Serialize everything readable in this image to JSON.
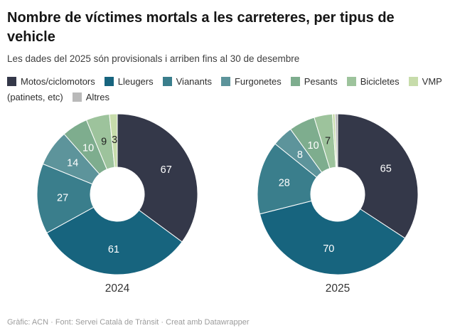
{
  "header": {
    "title": "Nombre de víctimes mortals a les carreteres, per tipus de vehicle",
    "subtitle": "Les dades del 2025 són provisionals i arriben fins al 30 de desembre"
  },
  "chart_data": {
    "type": "pie",
    "subtype": "donut",
    "legend_position": "top",
    "categories": [
      "Motos/ciclomotors",
      "Lleugers",
      "Vianants",
      "Furgonetes",
      "Pesants",
      "Bicicletes",
      "VMP (patinets, etc)",
      "Altres"
    ],
    "colors": [
      "#343849",
      "#17647e",
      "#3a7e8c",
      "#5d949b",
      "#7ead8e",
      "#9dc39c",
      "#c7dcab",
      "#b9b9b9"
    ],
    "charts": [
      {
        "label": "2024",
        "values": [
          67,
          61,
          27,
          14,
          10,
          9,
          3,
          0
        ],
        "shown_value_labels": [
          67,
          61,
          27,
          14,
          10,
          9,
          3
        ]
      },
      {
        "label": "2025",
        "values": [
          65,
          70,
          28,
          8,
          10,
          7,
          1,
          1
        ],
        "shown_value_labels": [
          65,
          70,
          28,
          8,
          10,
          7
        ]
      }
    ]
  },
  "footer": {
    "credit": "Gràfic: ACN · Font: Servei Català de Trànsit · Creat amb Datawrapper"
  }
}
